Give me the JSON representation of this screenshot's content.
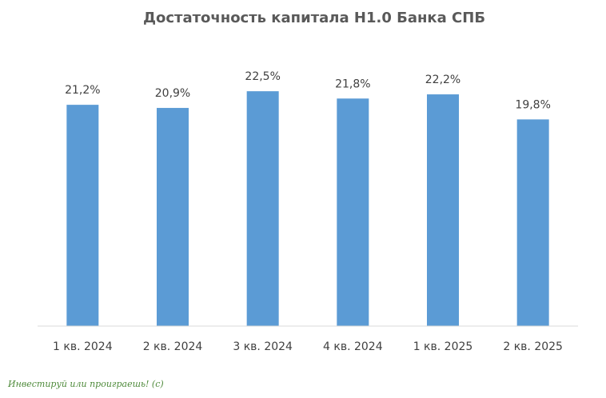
{
  "chart_data": {
    "type": "bar",
    "title": "Достаточность капитала Н1.0 Банка СПБ",
    "categories": [
      "1 кв. 2024",
      "2 кв. 2024",
      "3 кв. 2024",
      "4 кв. 2024",
      "1 кв. 2025",
      "2 кв. 2025"
    ],
    "values": [
      21.2,
      20.9,
      22.5,
      21.8,
      22.2,
      19.8
    ],
    "data_labels": [
      "21,2%",
      "20,9%",
      "22,5%",
      "21,8%",
      "22,2%",
      "19,8%"
    ],
    "xlabel": "",
    "ylabel": "",
    "ylim": [
      0,
      25
    ],
    "grid": false,
    "legend": "none",
    "bar_color": "#5b9bd5",
    "axis_color": "#d9d9d9"
  },
  "watermark": "Инвестируй или проиграешь! (с)"
}
